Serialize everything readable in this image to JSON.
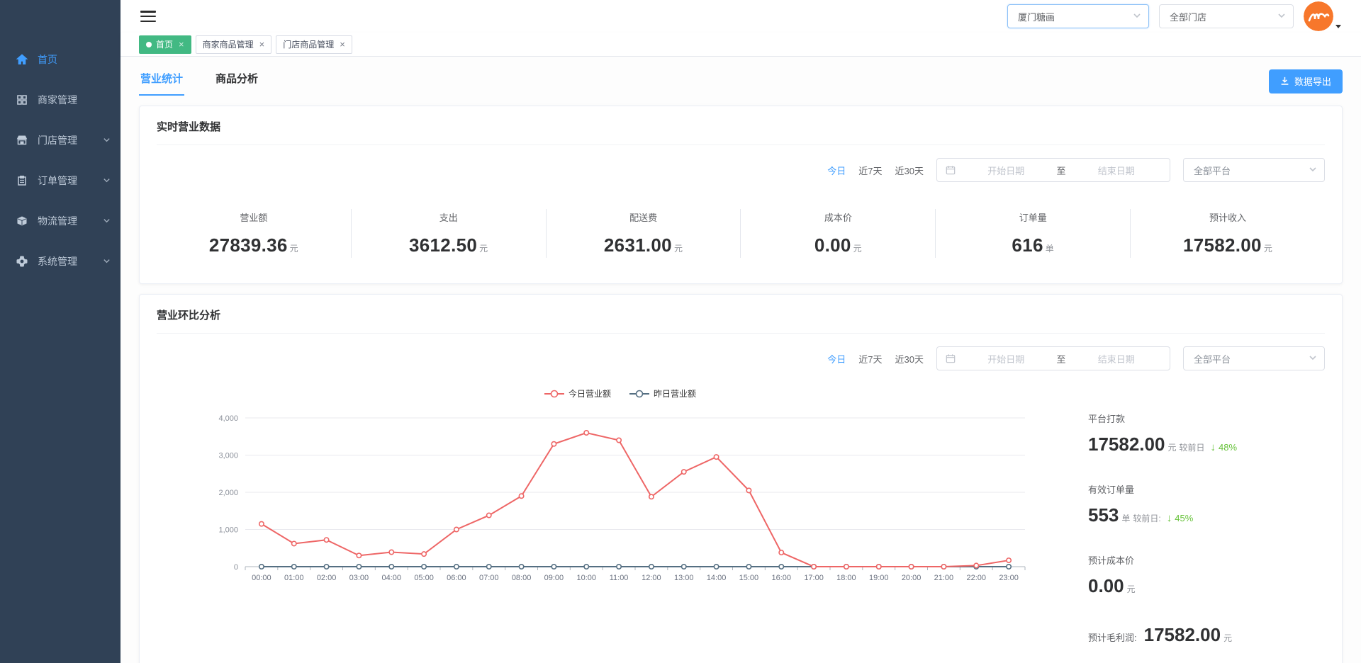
{
  "header": {
    "brand_select": "厦门糖画",
    "store_select": "全部门店"
  },
  "sidebar": {
    "items": [
      {
        "label": "首页",
        "icon": "home-icon",
        "active": true
      },
      {
        "label": "商家管理",
        "icon": "grid-icon",
        "active": false
      },
      {
        "label": "门店管理",
        "icon": "store-icon",
        "active": false,
        "expandable": true
      },
      {
        "label": "订单管理",
        "icon": "order-icon",
        "active": false,
        "expandable": true
      },
      {
        "label": "物流管理",
        "icon": "logistics-icon",
        "active": false,
        "expandable": true
      },
      {
        "label": "系统管理",
        "icon": "gear-icon",
        "active": false,
        "expandable": true
      }
    ]
  },
  "tags": {
    "items": [
      {
        "label": "首页",
        "active": true
      },
      {
        "label": "商家商品管理",
        "active": false
      },
      {
        "label": "门店商品管理",
        "active": false
      }
    ]
  },
  "tabs": {
    "business": "营业统计",
    "product": "商品分析"
  },
  "toolbar": {
    "export_label": "数据导出"
  },
  "filters": {
    "today": "今日",
    "last7": "近7天",
    "last30": "近30天",
    "start_placeholder": "开始日期",
    "range_separator": "至",
    "end_placeholder": "结束日期",
    "platform_select": "全部平台"
  },
  "realtime_card": {
    "title": "实时营业数据",
    "stats": [
      {
        "label": "营业额",
        "value": "27839.36",
        "unit": "元"
      },
      {
        "label": "支出",
        "value": "3612.50",
        "unit": "元"
      },
      {
        "label": "配送费",
        "value": "2631.00",
        "unit": "元"
      },
      {
        "label": "成本价",
        "value": "0.00",
        "unit": "元"
      },
      {
        "label": "订单量",
        "value": "616",
        "unit": "单"
      },
      {
        "label": "预计收入",
        "value": "17582.00",
        "unit": "元"
      }
    ]
  },
  "trend_card": {
    "title": "营业环比分析",
    "summary": {
      "payout": {
        "label": "平台打款",
        "value": "17582.00",
        "unit": "元",
        "compare": "较前日",
        "arrow": "↓",
        "percent": "48%"
      },
      "orders": {
        "label": "有效订单量",
        "value": "553",
        "unit": "单",
        "compare": "较前日:",
        "arrow": "↓",
        "percent": "45%"
      },
      "cost": {
        "label": "预计成本价",
        "value": "0.00",
        "unit": "元"
      },
      "profit": {
        "label": "预计毛利润:",
        "value": "17582.00",
        "unit": "元"
      }
    }
  },
  "chart_data": {
    "type": "line",
    "title": "营业环比分析",
    "x": [
      "00:00",
      "01:00",
      "02:00",
      "03:00",
      "04:00",
      "05:00",
      "06:00",
      "07:00",
      "08:00",
      "09:00",
      "10:00",
      "11:00",
      "12:00",
      "13:00",
      "14:00",
      "15:00",
      "16:00",
      "17:00",
      "18:00",
      "19:00",
      "20:00",
      "21:00",
      "22:00",
      "23:00"
    ],
    "series": [
      {
        "name": "今日营业额",
        "color": "#ee6666",
        "values": [
          1150,
          620,
          720,
          300,
          390,
          340,
          1000,
          1380,
          1900,
          3300,
          3600,
          3400,
          1880,
          2550,
          2950,
          2050,
          380,
          0,
          0,
          0,
          0,
          0,
          30,
          170
        ]
      },
      {
        "name": "昨日营业额",
        "color": "#556f82",
        "values": [
          0,
          0,
          0,
          0,
          0,
          0,
          0,
          0,
          0,
          0,
          0,
          0,
          0,
          0,
          0,
          0,
          0,
          0,
          0,
          0,
          0,
          0,
          0,
          0
        ]
      }
    ],
    "ylim": [
      0,
      4000
    ],
    "yticks": [
      0,
      1000,
      2000,
      3000,
      4000
    ],
    "xlabel": "",
    "ylabel": "",
    "grid": true,
    "legend_position": "top-center"
  },
  "colors": {
    "accent": "#409eff",
    "sidebar_bg": "#304156",
    "tag_active_bg": "#42b983",
    "success_green": "#67c23a",
    "today_line": "#ee6666",
    "yesterday_line": "#556f82",
    "avatar_orange": "#f7772b"
  }
}
